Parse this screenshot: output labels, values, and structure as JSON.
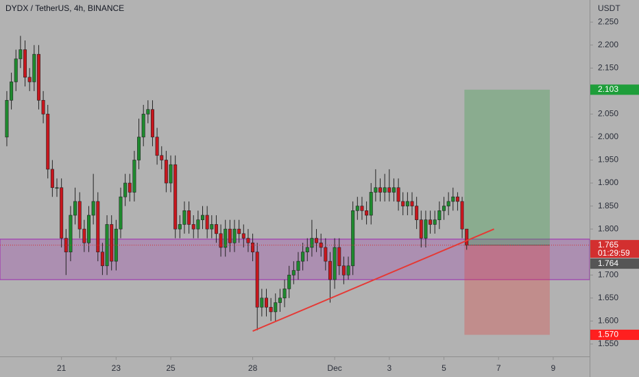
{
  "chart_data": {
    "type": "candlestick",
    "title": "DYDX / TetherUS, 4h, BINANCE",
    "y_unit": "USDT",
    "x": [
      0,
      4,
      8,
      12,
      16,
      20,
      24,
      28,
      32,
      36,
      40,
      44,
      48,
      52,
      56,
      60,
      64,
      68,
      72,
      76,
      80,
      84,
      88,
      92,
      96,
      100,
      104,
      108,
      112,
      116,
      120,
      124,
      128,
      132,
      136,
      140,
      144,
      148,
      152,
      156,
      160,
      164,
      168,
      172,
      176,
      180,
      184,
      188,
      192,
      196,
      200,
      204,
      208,
      212,
      216,
      220,
      224,
      228,
      232,
      236,
      240,
      244,
      248,
      252,
      256,
      260,
      264,
      268,
      272,
      276,
      280,
      284,
      288,
      292,
      296,
      300,
      304,
      308,
      312,
      316,
      320,
      324,
      328,
      332,
      336,
      340,
      344,
      348,
      352,
      356,
      360,
      364,
      368,
      372,
      376,
      380,
      384,
      388,
      392,
      396,
      400,
      404
    ],
    "open": [
      2.0,
      2.08,
      2.12,
      2.17,
      2.19,
      2.13,
      2.12,
      2.18,
      2.08,
      2.05,
      1.93,
      1.89,
      1.89,
      1.78,
      1.75,
      1.83,
      1.86,
      1.8,
      1.77,
      1.83,
      1.86,
      1.75,
      1.72,
      1.81,
      1.73,
      1.8,
      1.87,
      1.9,
      1.88,
      1.95,
      2.0,
      2.05,
      2.06,
      2.0,
      1.96,
      1.95,
      1.9,
      1.94,
      1.8,
      1.81,
      1.84,
      1.81,
      1.8,
      1.82,
      1.83,
      1.8,
      1.81,
      1.79,
      1.76,
      1.8,
      1.77,
      1.8,
      1.79,
      1.78,
      1.77,
      1.75,
      1.63,
      1.65,
      1.63,
      1.62,
      1.64,
      1.65,
      1.67,
      1.7,
      1.71,
      1.73,
      1.75,
      1.76,
      1.78,
      1.77,
      1.76,
      1.73,
      1.69,
      1.76,
      1.72,
      1.7,
      1.72,
      1.84,
      1.85,
      1.84,
      1.83,
      1.88,
      1.89,
      1.88,
      1.89,
      1.88,
      1.89,
      1.86,
      1.85,
      1.86,
      1.85,
      1.82,
      1.78,
      1.82,
      1.81,
      1.82,
      1.84,
      1.85,
      1.86,
      1.87,
      1.86,
      1.8
    ],
    "high": [
      2.1,
      2.14,
      2.19,
      2.22,
      2.21,
      2.15,
      2.2,
      2.2,
      2.1,
      2.07,
      1.95,
      1.91,
      1.91,
      1.8,
      1.85,
      1.89,
      1.88,
      1.82,
      1.85,
      1.92,
      1.88,
      1.77,
      1.83,
      1.83,
      1.82,
      1.89,
      1.92,
      1.92,
      1.97,
      2.04,
      2.07,
      2.08,
      2.08,
      2.02,
      1.98,
      1.97,
      1.96,
      1.96,
      1.83,
      1.86,
      1.86,
      1.83,
      1.84,
      1.85,
      1.85,
      1.83,
      1.83,
      1.81,
      1.82,
      1.82,
      1.82,
      1.82,
      1.81,
      1.8,
      1.79,
      1.77,
      1.67,
      1.67,
      1.65,
      1.66,
      1.67,
      1.69,
      1.72,
      1.73,
      1.75,
      1.77,
      1.78,
      1.82,
      1.8,
      1.79,
      1.78,
      1.75,
      1.78,
      1.78,
      1.74,
      1.74,
      1.86,
      1.87,
      1.87,
      1.86,
      1.9,
      1.93,
      1.91,
      1.92,
      1.93,
      1.91,
      1.91,
      1.88,
      1.88,
      1.88,
      1.87,
      1.84,
      1.84,
      1.84,
      1.84,
      1.86,
      1.87,
      1.88,
      1.89,
      1.88,
      1.87,
      1.8
    ],
    "low": [
      1.98,
      2.06,
      2.1,
      2.15,
      2.11,
      2.1,
      2.1,
      2.06,
      2.03,
      1.91,
      1.87,
      1.87,
      1.76,
      1.7,
      1.73,
      1.81,
      1.78,
      1.75,
      1.75,
      1.81,
      1.73,
      1.7,
      1.7,
      1.71,
      1.71,
      1.78,
      1.85,
      1.86,
      1.86,
      1.93,
      1.98,
      2.03,
      1.98,
      1.94,
      1.93,
      1.88,
      1.88,
      1.78,
      1.78,
      1.79,
      1.79,
      1.78,
      1.78,
      1.8,
      1.78,
      1.78,
      1.77,
      1.74,
      1.74,
      1.75,
      1.75,
      1.77,
      1.76,
      1.75,
      1.73,
      1.58,
      1.61,
      1.61,
      1.6,
      1.6,
      1.62,
      1.63,
      1.65,
      1.68,
      1.69,
      1.71,
      1.73,
      1.74,
      1.75,
      1.74,
      1.71,
      1.64,
      1.67,
      1.7,
      1.68,
      1.69,
      1.7,
      1.82,
      1.82,
      1.81,
      1.81,
      1.86,
      1.86,
      1.86,
      1.86,
      1.86,
      1.84,
      1.83,
      1.83,
      1.83,
      1.8,
      1.76,
      1.76,
      1.79,
      1.79,
      1.8,
      1.82,
      1.83,
      1.84,
      1.84,
      1.78,
      1.755
    ],
    "close": [
      2.08,
      2.12,
      2.17,
      2.19,
      2.13,
      2.12,
      2.18,
      2.08,
      2.05,
      1.93,
      1.89,
      1.89,
      1.78,
      1.75,
      1.83,
      1.86,
      1.8,
      1.77,
      1.83,
      1.86,
      1.75,
      1.72,
      1.81,
      1.73,
      1.8,
      1.87,
      1.9,
      1.88,
      1.95,
      2.0,
      2.05,
      2.06,
      2.0,
      1.96,
      1.95,
      1.9,
      1.94,
      1.8,
      1.81,
      1.84,
      1.81,
      1.8,
      1.82,
      1.83,
      1.8,
      1.81,
      1.79,
      1.76,
      1.8,
      1.77,
      1.8,
      1.79,
      1.78,
      1.77,
      1.75,
      1.63,
      1.65,
      1.63,
      1.62,
      1.64,
      1.65,
      1.67,
      1.7,
      1.71,
      1.73,
      1.75,
      1.76,
      1.78,
      1.77,
      1.76,
      1.73,
      1.69,
      1.76,
      1.72,
      1.7,
      1.72,
      1.84,
      1.85,
      1.84,
      1.83,
      1.88,
      1.89,
      1.88,
      1.89,
      1.88,
      1.89,
      1.86,
      1.85,
      1.86,
      1.85,
      1.82,
      1.78,
      1.82,
      1.81,
      1.82,
      1.84,
      1.85,
      1.86,
      1.87,
      1.86,
      1.8,
      1.765
    ],
    "up_color": "#1e8a2e",
    "down_color": "#c8161d",
    "xlim": [
      -6,
      512
    ],
    "xticks": [
      {
        "value": 48,
        "label": "21"
      },
      {
        "value": 96,
        "label": "23"
      },
      {
        "value": 144,
        "label": "25"
      },
      {
        "value": 216,
        "label": "28"
      },
      {
        "value": 288,
        "label": "Dec"
      },
      {
        "value": 336,
        "label": "3"
      },
      {
        "value": 384,
        "label": "5"
      },
      {
        "value": 432,
        "label": "7"
      },
      {
        "value": 480,
        "label": "9"
      }
    ],
    "ylim": [
      1.523,
      2.298
    ],
    "yticks": [
      {
        "value": 1.55,
        "label": "1.550"
      },
      {
        "value": 1.6,
        "label": "1.600"
      },
      {
        "value": 1.65,
        "label": "1.650"
      },
      {
        "value": 1.7,
        "label": "1.700"
      },
      {
        "value": 1.75,
        "label": "1.750"
      },
      {
        "value": 1.8,
        "label": "1.800"
      },
      {
        "value": 1.85,
        "label": "1.850"
      },
      {
        "value": 1.9,
        "label": "1.900"
      },
      {
        "value": 1.95,
        "label": "1.950"
      },
      {
        "value": 2.0,
        "label": "2.000"
      },
      {
        "value": 2.05,
        "label": "2.050"
      },
      {
        "value": 2.1,
        "label": "2.100"
      },
      {
        "value": 2.15,
        "label": "2.150"
      },
      {
        "value": 2.2,
        "label": "2.200"
      },
      {
        "value": 2.25,
        "label": "2.250"
      }
    ],
    "zone": {
      "low": 1.69,
      "high": 1.778,
      "color": "#9c27b0"
    },
    "position": {
      "start": 402,
      "end": 477,
      "entry": 1.765,
      "target": 2.103,
      "stop": 1.57
    },
    "trendline": {
      "x": [
        216,
        428
      ],
      "y": [
        1.578,
        1.8
      ],
      "color": "#e53935"
    },
    "price_labels": [
      {
        "value": 2.103,
        "label": "2.103",
        "color": "#1e9e3a"
      },
      {
        "value": 1.765,
        "label": "1.765",
        "color": "#d32f2f"
      },
      {
        "value": 1.764,
        "label": "1.764",
        "color": "#555555"
      },
      {
        "value": 1.57,
        "label": "1.570",
        "color": "#ff1f1f"
      }
    ],
    "countdown": "01:29:59"
  }
}
